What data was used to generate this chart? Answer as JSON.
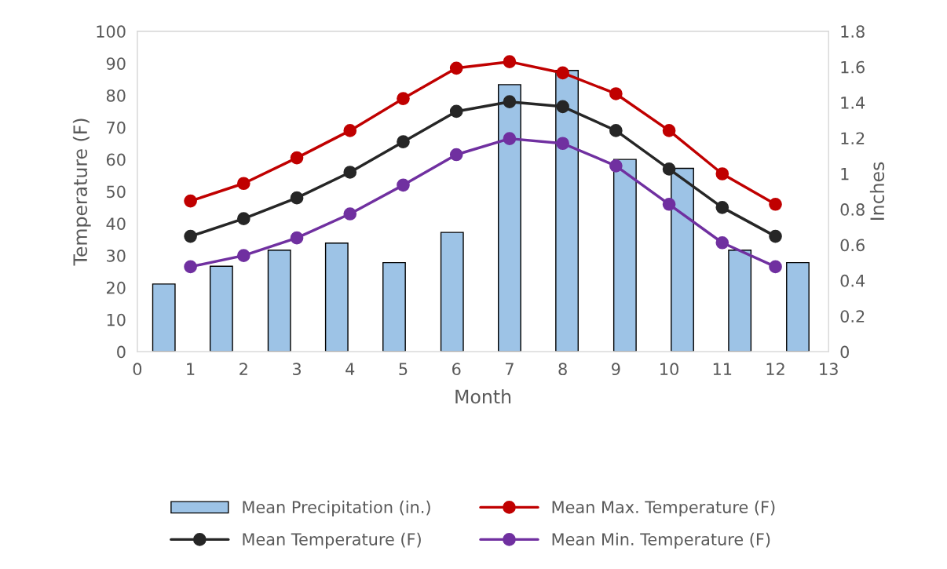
{
  "chart_data": {
    "type": "line",
    "xlabel": "Month",
    "ylabel": "Temperature (F)",
    "y2label": "Inches",
    "xlim": [
      0,
      13
    ],
    "xticks": [
      0,
      1,
      2,
      3,
      4,
      5,
      6,
      7,
      8,
      9,
      10,
      11,
      12,
      13
    ],
    "ylim": [
      0,
      100
    ],
    "yticks": [
      0,
      10,
      20,
      30,
      40,
      50,
      60,
      70,
      80,
      90,
      100
    ],
    "y2lim": [
      0,
      1.8
    ],
    "y2ticks": [
      0,
      0.2,
      0.4,
      0.6,
      0.8,
      1,
      1.2,
      1.4,
      1.6,
      1.8
    ],
    "grid": false,
    "legend": "bottom",
    "marker": "circle",
    "series": [
      {
        "name": "Mean Precipitation (in.)",
        "type": "bar",
        "axis": "y2",
        "color": "#9dc3e6",
        "x": [
          0.5,
          1.58,
          2.67,
          3.75,
          4.83,
          5.92,
          7.0,
          8.08,
          9.17,
          10.25,
          11.33,
          12.42
        ],
        "values": [
          0.38,
          0.48,
          0.57,
          0.61,
          0.5,
          0.67,
          1.5,
          1.58,
          1.08,
          1.03,
          0.57,
          0.5
        ]
      },
      {
        "name": "Mean Max. Temperature (F)",
        "color": "#c00000",
        "x": [
          1,
          2,
          3,
          4,
          5,
          6,
          7,
          8,
          9,
          10,
          11,
          12
        ],
        "values": [
          47,
          52.5,
          60.5,
          69,
          79,
          88.5,
          90.5,
          87,
          80.5,
          69,
          55.5,
          46
        ]
      },
      {
        "name": "Mean Temperature (F)",
        "color": "#262626",
        "x": [
          1,
          2,
          3,
          4,
          5,
          6,
          7,
          8,
          9,
          10,
          11,
          12
        ],
        "values": [
          36,
          41.5,
          48,
          56,
          65.5,
          75,
          78,
          76.5,
          69,
          57,
          45,
          36
        ]
      },
      {
        "name": "Mean Min. Temperature (F)",
        "color": "#7030a0",
        "x": [
          1,
          2,
          3,
          4,
          5,
          6,
          7,
          8,
          9,
          10,
          11,
          12
        ],
        "values": [
          26.5,
          30,
          35.5,
          43,
          52,
          61.5,
          66.5,
          65,
          58,
          46,
          34,
          26.5
        ]
      }
    ]
  }
}
